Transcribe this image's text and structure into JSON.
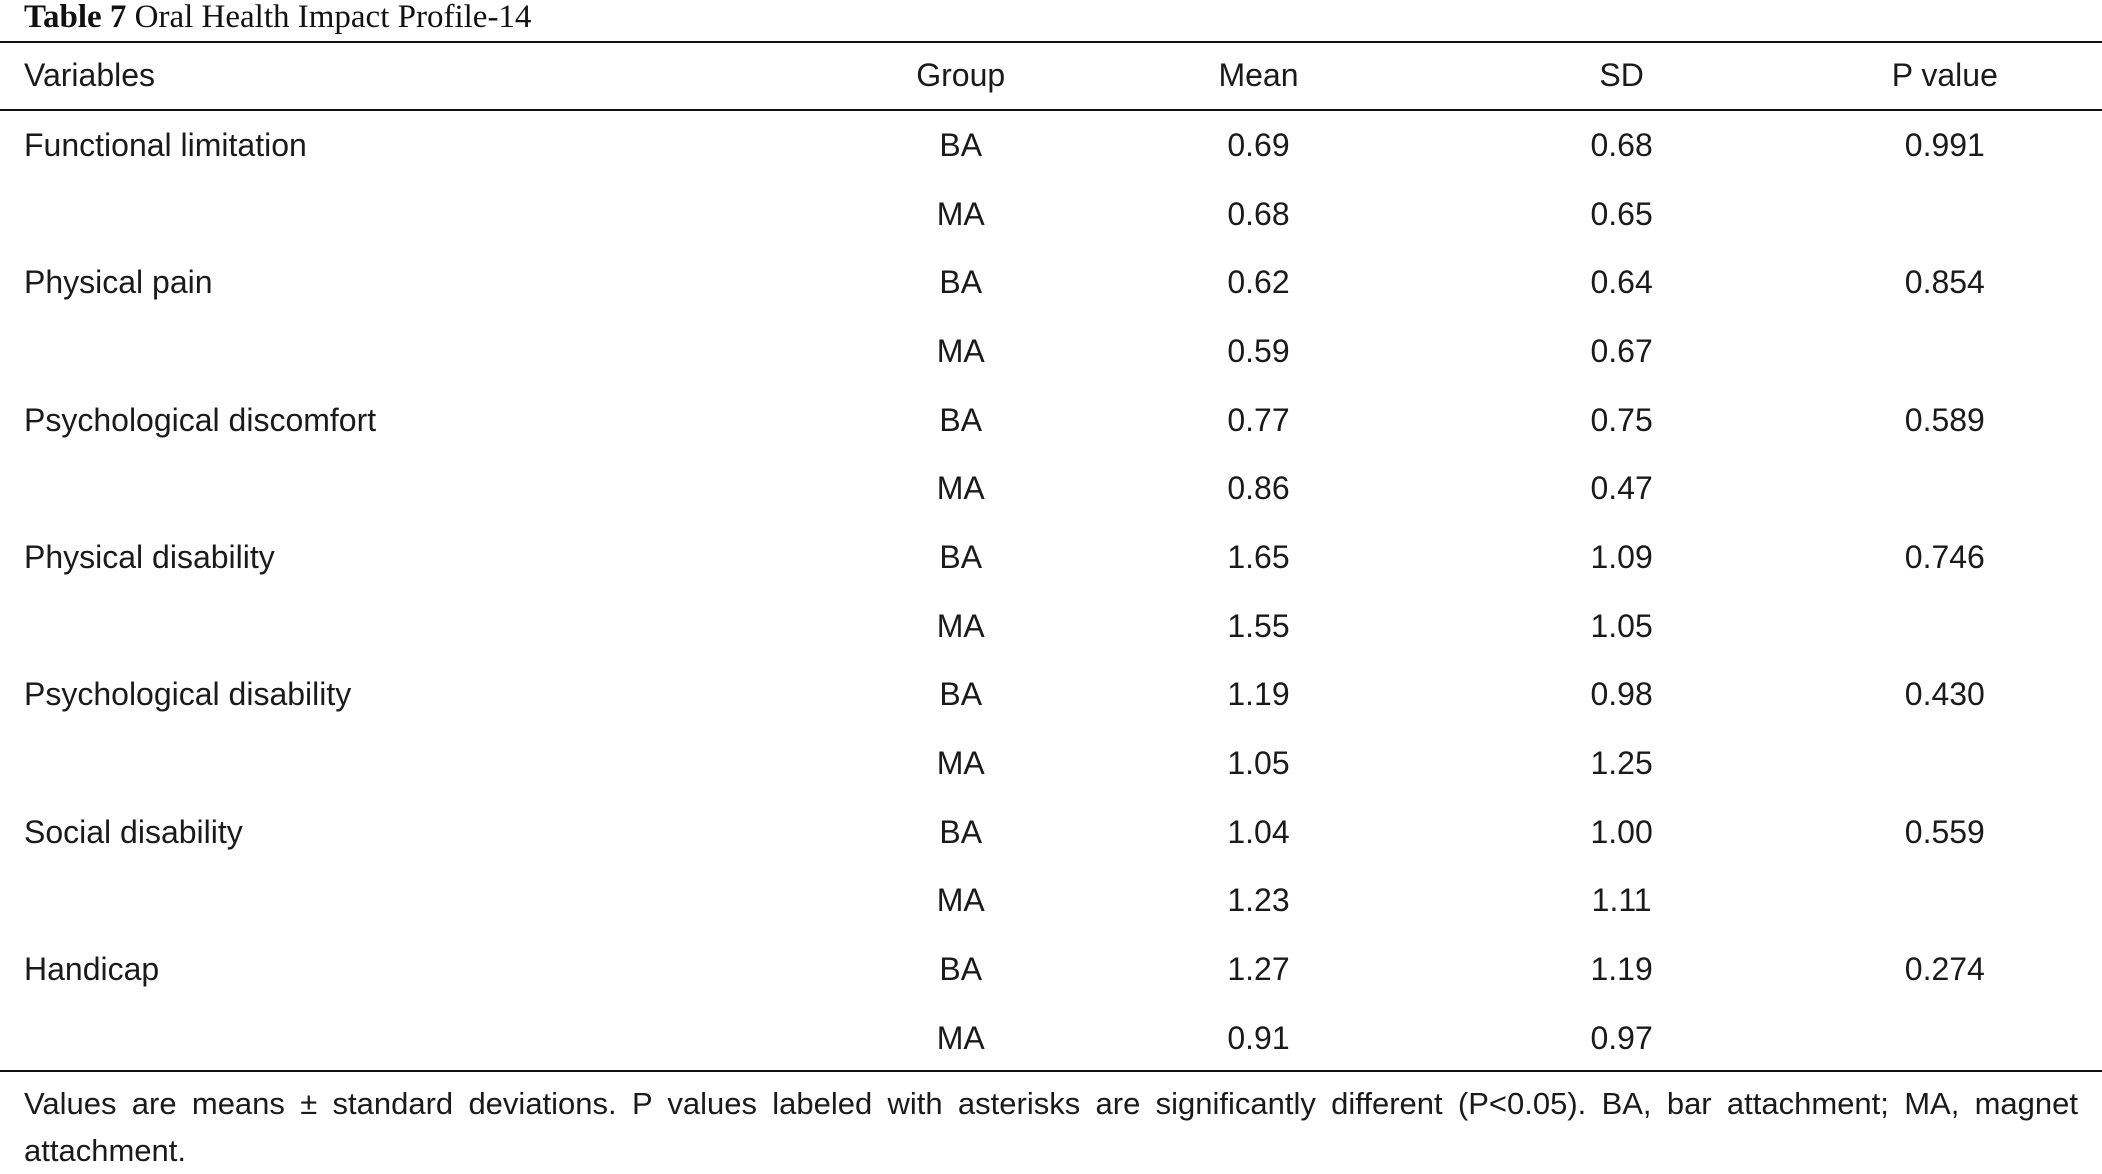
{
  "caption": {
    "label": "Table 7",
    "title": "Oral Health Impact Profile-14"
  },
  "table": {
    "headers": {
      "variables": "Variables",
      "group": "Group",
      "mean": "Mean",
      "sd": "SD",
      "p_value": "P value"
    },
    "rows": [
      {
        "variable": "Functional limitation",
        "group": "BA",
        "mean": "0.69",
        "sd": "0.68",
        "p": "0.991"
      },
      {
        "variable": "",
        "group": "MA",
        "mean": "0.68",
        "sd": "0.65",
        "p": ""
      },
      {
        "variable": "Physical pain",
        "group": "BA",
        "mean": "0.62",
        "sd": "0.64",
        "p": "0.854"
      },
      {
        "variable": "",
        "group": "MA",
        "mean": "0.59",
        "sd": "0.67",
        "p": ""
      },
      {
        "variable": "Psychological discomfort",
        "group": "BA",
        "mean": "0.77",
        "sd": "0.75",
        "p": "0.589"
      },
      {
        "variable": "",
        "group": "MA",
        "mean": "0.86",
        "sd": "0.47",
        "p": ""
      },
      {
        "variable": "Physical disability",
        "group": "BA",
        "mean": "1.65",
        "sd": "1.09",
        "p": "0.746"
      },
      {
        "variable": "",
        "group": "MA",
        "mean": "1.55",
        "sd": "1.05",
        "p": ""
      },
      {
        "variable": "Psychological disability",
        "group": "BA",
        "mean": "1.19",
        "sd": "0.98",
        "p": "0.430"
      },
      {
        "variable": "",
        "group": "MA",
        "mean": "1.05",
        "sd": "1.25",
        "p": ""
      },
      {
        "variable": "Social disability",
        "group": "BA",
        "mean": "1.04",
        "sd": "1.00",
        "p": "0.559"
      },
      {
        "variable": "",
        "group": "MA",
        "mean": "1.23",
        "sd": "1.11",
        "p": ""
      },
      {
        "variable": "Handicap",
        "group": "BA",
        "mean": "1.27",
        "sd": "1.19",
        "p": "0.274"
      },
      {
        "variable": "",
        "group": "MA",
        "mean": "0.91",
        "sd": "0.97",
        "p": ""
      }
    ]
  },
  "footnote": "Values are means ± standard deviations. P values labeled with asterisks are significantly different (P<0.05). BA, bar attachment; MA, magnet attachment."
}
